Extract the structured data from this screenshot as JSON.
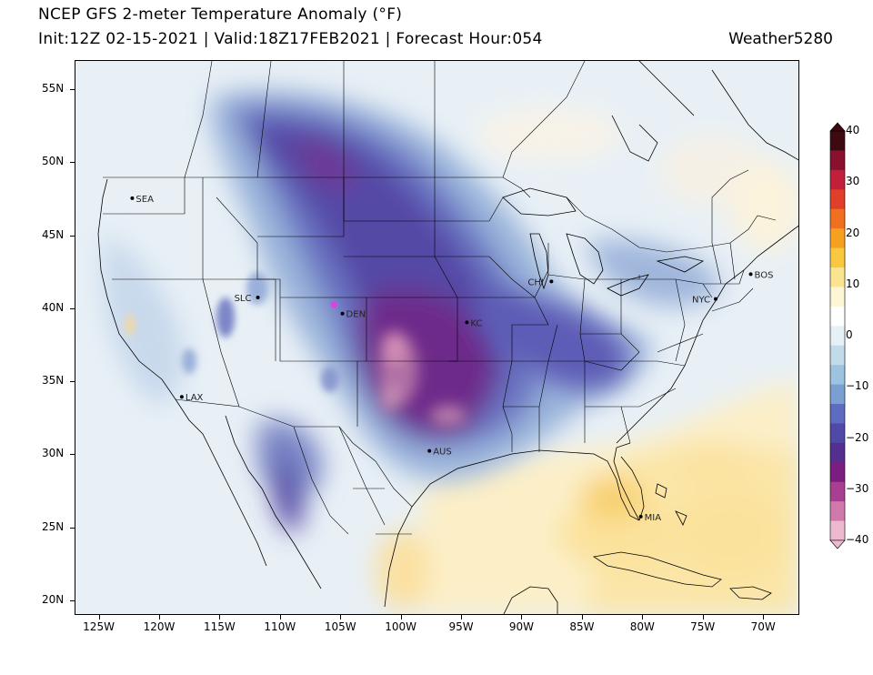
{
  "header": {
    "title": "NCEP GFS 2-meter Temperature Anomaly (°F)",
    "subtitle": "Init:12Z 02-15-2021 | Valid:18Z17FEB2021 | Forecast Hour:054",
    "credit": "Weather5280"
  },
  "map": {
    "lon_range": [
      -127,
      -67
    ],
    "lat_range": [
      19,
      57
    ],
    "lat_ticks": [
      {
        "value": 55,
        "label": "55N"
      },
      {
        "value": 50,
        "label": "50N"
      },
      {
        "value": 45,
        "label": "45N"
      },
      {
        "value": 40,
        "label": "40N"
      },
      {
        "value": 35,
        "label": "35N"
      },
      {
        "value": 30,
        "label": "30N"
      },
      {
        "value": 25,
        "label": "25N"
      },
      {
        "value": 20,
        "label": "20N"
      }
    ],
    "lon_ticks": [
      {
        "value": -125,
        "label": "125W"
      },
      {
        "value": -120,
        "label": "120W"
      },
      {
        "value": -115,
        "label": "115W"
      },
      {
        "value": -110,
        "label": "110W"
      },
      {
        "value": -105,
        "label": "105W"
      },
      {
        "value": -100,
        "label": "100W"
      },
      {
        "value": -95,
        "label": "95W"
      },
      {
        "value": -90,
        "label": "90W"
      },
      {
        "value": -85,
        "label": "85W"
      },
      {
        "value": -80,
        "label": "80W"
      },
      {
        "value": -75,
        "label": "75W"
      },
      {
        "value": -70,
        "label": "70W"
      }
    ],
    "cities": [
      {
        "label": "SEA",
        "lon": -122.3,
        "lat": 47.6
      },
      {
        "label": "SLC",
        "lon": -111.9,
        "lat": 40.8
      },
      {
        "label": "DEN",
        "lon": -104.9,
        "lat": 39.7
      },
      {
        "label": "LAX",
        "lon": -118.2,
        "lat": 34.0
      },
      {
        "label": "KC",
        "lon": -94.6,
        "lat": 39.1
      },
      {
        "label": "CHI",
        "lon": -87.6,
        "lat": 41.9
      },
      {
        "label": "AUS",
        "lon": -97.7,
        "lat": 30.3
      },
      {
        "label": "NYC",
        "lon": -74.0,
        "lat": 40.7
      },
      {
        "label": "BOS",
        "lon": -71.1,
        "lat": 42.4
      },
      {
        "label": "MIA",
        "lon": -80.2,
        "lat": 25.8
      }
    ],
    "marker_color": "#e040e0",
    "marker": {
      "lon": -105.6,
      "lat": 40.3
    }
  },
  "colorbar": {
    "ticks": [
      "40",
      "30",
      "20",
      "10",
      "0",
      "−10",
      "−20",
      "−30",
      "−40"
    ],
    "stops": [
      "#3d0a10",
      "#8a1030",
      "#c0203a",
      "#e0402a",
      "#f07020",
      "#f5a020",
      "#f8c840",
      "#fbe490",
      "#fdf6d4",
      "#ffffff",
      "#e6f0f7",
      "#c2dbeb",
      "#9cc3df",
      "#7aa0d2",
      "#5d6cc0",
      "#5049a8",
      "#552f90",
      "#7a1f80",
      "#a83f90",
      "#d079ad",
      "#ecb9cf"
    ]
  }
}
